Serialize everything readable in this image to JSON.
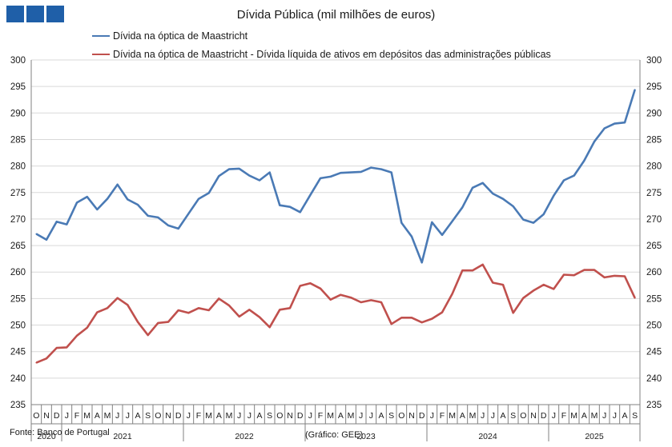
{
  "header": {
    "logo_name": "gee-logo"
  },
  "chart_data": {
    "type": "line",
    "title": "Dívida Pública (mil milhões de euros)",
    "source": "Fonte: Banco de Portugal",
    "credit": "(Gráfico: GEE)",
    "ylim": [
      235,
      300
    ],
    "yticks": [
      235,
      240,
      245,
      250,
      255,
      260,
      265,
      270,
      275,
      280,
      285,
      290,
      295,
      300
    ],
    "legend_position": "top",
    "grid": "horizontal",
    "month_labels": [
      "O",
      "N",
      "D",
      "J",
      "F",
      "M",
      "A",
      "M",
      "J",
      "J",
      "A",
      "S",
      "O",
      "N",
      "D",
      "J",
      "F",
      "M",
      "A",
      "M",
      "J",
      "J",
      "A",
      "S",
      "O",
      "N",
      "D",
      "J",
      "F",
      "M",
      "A",
      "M",
      "J",
      "J",
      "A",
      "S",
      "O",
      "N",
      "D",
      "J",
      "F",
      "M",
      "A",
      "M",
      "J",
      "J",
      "A",
      "S",
      "O",
      "N",
      "D",
      "J",
      "F",
      "M",
      "A",
      "M",
      "J",
      "J",
      "A",
      "S"
    ],
    "year_labels": [
      "2020",
      "2021",
      "2022",
      "2023",
      "2024",
      "2025"
    ],
    "year_month_counts": [
      3,
      12,
      12,
      12,
      12,
      9
    ],
    "series": [
      {
        "name": "Dívida na óptica de Maastricht",
        "color": "#4a7ab5",
        "values": [
          267.2,
          266.1,
          269.5,
          269.0,
          273.1,
          274.2,
          271.8,
          273.8,
          276.5,
          273.7,
          272.7,
          270.6,
          270.3,
          268.8,
          268.2,
          271.0,
          273.8,
          274.9,
          278.1,
          279.4,
          279.5,
          278.2,
          277.3,
          278.8,
          272.6,
          272.3,
          271.3,
          274.5,
          277.7,
          278.0,
          278.7,
          278.8,
          278.9,
          279.7,
          279.4,
          278.8,
          269.3,
          266.7,
          261.8,
          269.4,
          267.0,
          269.6,
          272.2,
          275.9,
          276.8,
          274.8,
          273.8,
          272.4,
          269.9,
          269.3,
          270.9,
          274.4,
          277.3,
          278.2,
          281.0,
          284.6,
          287.1,
          288.0,
          288.2,
          294.4
        ]
      },
      {
        "name": "Dívida na óptica de Maastricht - Dívida líquida de ativos em depósitos das administrações públicas",
        "color": "#c0504d",
        "values": [
          242.9,
          243.7,
          245.7,
          245.8,
          248.0,
          249.5,
          252.4,
          253.2,
          255.1,
          253.8,
          250.6,
          248.1,
          250.4,
          250.6,
          252.8,
          252.3,
          253.2,
          252.8,
          255.0,
          253.7,
          251.6,
          252.9,
          251.5,
          249.6,
          252.9,
          253.2,
          257.4,
          257.9,
          256.9,
          254.8,
          255.7,
          255.2,
          254.3,
          254.7,
          254.3,
          250.2,
          251.4,
          251.4,
          250.5,
          251.2,
          252.4,
          255.9,
          260.3,
          260.3,
          261.4,
          258.0,
          257.6,
          252.3,
          255.1,
          256.5,
          257.6,
          256.8,
          259.5,
          259.4,
          260.4,
          260.4,
          259.0,
          259.3,
          259.2,
          255.1
        ]
      }
    ]
  }
}
